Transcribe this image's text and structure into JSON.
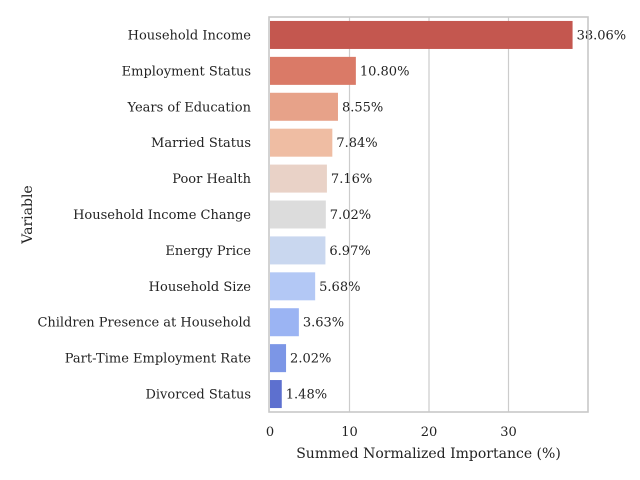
{
  "chart_data": {
    "type": "bar",
    "orientation": "horizontal",
    "categories": [
      "Household Income",
      "Employment Status",
      "Years of Education",
      "Married Status",
      "Poor Health",
      "Household Income Change",
      "Energy Price",
      "Household Size",
      "Children Presence at Household",
      "Part-Time Employment Rate",
      "Divorced Status"
    ],
    "values": [
      38.06,
      10.8,
      8.55,
      7.84,
      7.16,
      7.02,
      6.97,
      5.68,
      3.63,
      2.02,
      1.48
    ],
    "data_labels": [
      "38.06%",
      "10.80%",
      "8.55%",
      "7.84%",
      "7.16%",
      "7.02%",
      "6.97%",
      "5.68%",
      "3.63%",
      "2.02%",
      "1.48%"
    ],
    "colors": [
      "#c4574f",
      "#da7a67",
      "#e7a289",
      "#efbda3",
      "#e9d2c7",
      "#dcdcdc",
      "#c9d7ef",
      "#b3c8f5",
      "#9bb4f3",
      "#7c96e6",
      "#5d70cf"
    ],
    "xlabel": "Summed Normalized Importance (%)",
    "ylabel": "Variable",
    "xlim": [
      0,
      40
    ],
    "xticks": [
      0,
      10,
      20,
      30
    ],
    "grid": "vertical"
  }
}
